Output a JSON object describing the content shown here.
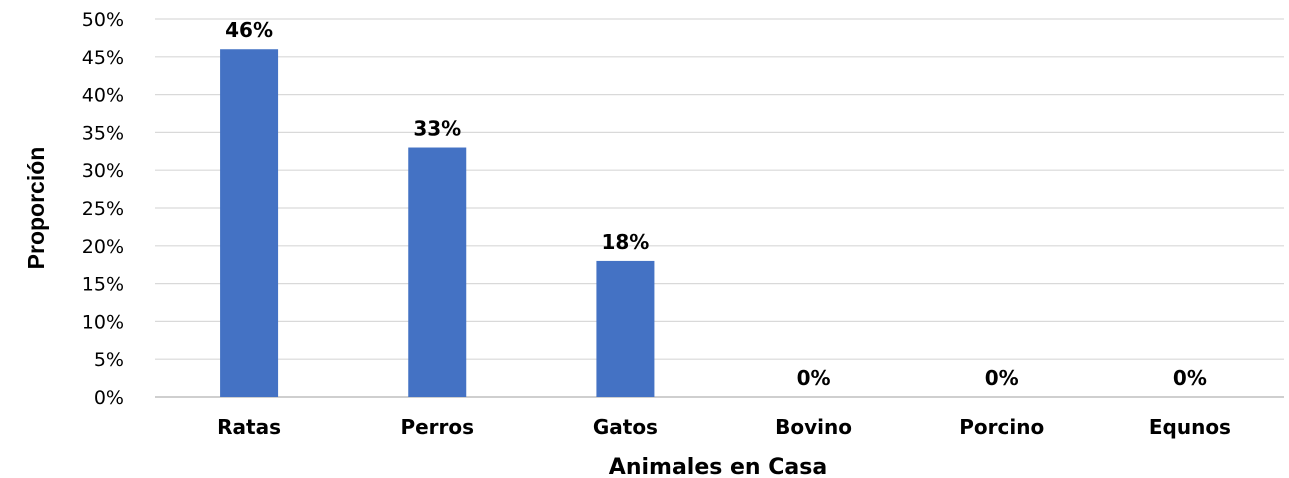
{
  "chart_data": {
    "type": "bar",
    "categories": [
      "Ratas",
      "Perros",
      "Gatos",
      "Bovino",
      "Porcino",
      "Equnos"
    ],
    "values": [
      46,
      33,
      18,
      0,
      0,
      0
    ],
    "data_labels": [
      "46%",
      "33%",
      "18%",
      "0%",
      "0%",
      "0%"
    ],
    "xlabel": "Animales en Casa",
    "ylabel": "Proporción",
    "ylim": [
      0,
      50
    ],
    "y_ticks": [
      "0%",
      "5%",
      "10%",
      "15%",
      "20%",
      "25%",
      "30%",
      "35%",
      "40%",
      "45%",
      "50%"
    ],
    "grid": true,
    "legend": "none",
    "bar_color": "#4472c4",
    "grid_color": "#d9d9d9"
  }
}
